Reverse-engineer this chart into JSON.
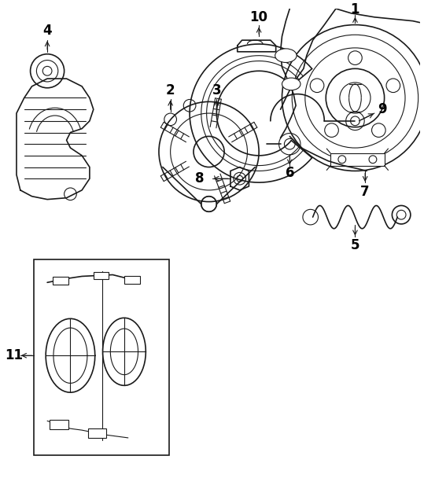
{
  "background_color": "#ffffff",
  "line_color": "#1a1a1a",
  "label_color": "#000000",
  "fig_width": 5.39,
  "fig_height": 6.36,
  "dpi": 100
}
